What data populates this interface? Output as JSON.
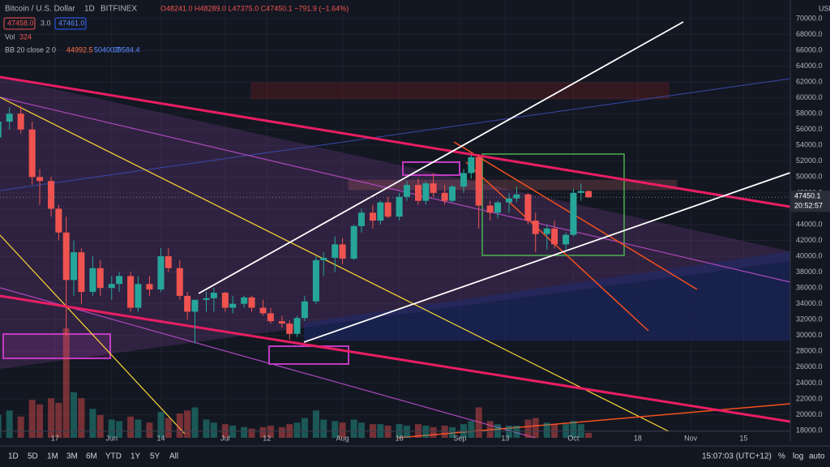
{
  "chart_data": {
    "type": "candlestick",
    "legend": {
      "symbol": "Bitcoin / U.S. Dollar",
      "interval": "1D",
      "exchange": "BITFINEX",
      "ohlc": "O48241.0 H48289.0 L47375.0 C47450.1 −791.9 (−1.64%)",
      "bid": "47458.0",
      "spread": "3.0",
      "ask": "47461.0",
      "vol_label": "Vol",
      "bb_label": "BB 20 close 2 0",
      "bb_basis": "44992.5",
      "bb_upper": "50400.7",
      "bb_lower": "39584.4"
    },
    "currency": "USD",
    "countdown": "20:52:57",
    "candles": {
      "x": [
        1,
        4,
        7,
        10,
        12,
        15,
        17,
        19,
        21,
        23,
        26,
        28,
        31,
        33,
        36,
        38,
        41,
        44,
        46,
        49,
        51,
        53,
        56,
        58,
        61,
        63,
        66,
        68,
        71,
        73,
        76,
        78,
        80,
        82,
        85,
        87,
        90,
        92,
        95,
        97,
        100,
        102,
        104,
        107,
        109,
        112,
        114,
        116,
        119,
        121,
        124,
        126,
        128,
        131,
        133,
        136,
        138,
        141,
        143,
        146,
        148,
        151,
        153,
        155,
        157
      ],
      "open": [
        55000,
        57000,
        58000,
        56000,
        50000,
        49500,
        46000,
        43000,
        37000,
        40500,
        35500,
        38500,
        36000,
        36500,
        37500,
        33500,
        36500,
        35800,
        40000,
        38500,
        35000,
        33000,
        34500,
        34700,
        35400,
        33500,
        34000,
        34800,
        33500,
        32800,
        31800,
        31500,
        30200,
        32200,
        34300,
        39500,
        39800,
        41500,
        39700,
        43800,
        45500,
        44500,
        46800,
        45000,
        47500,
        49000,
        47000,
        49200,
        48000,
        47000,
        48800,
        50500,
        52500,
        46400,
        45500,
        46800,
        47300,
        47800,
        44500,
        42800,
        43500,
        41500,
        42700,
        48000,
        48241
      ],
      "high": [
        57500,
        58800,
        59000,
        57000,
        51000,
        50000,
        46500,
        45000,
        42000,
        41000,
        40000,
        39500,
        37500,
        38000,
        38000,
        37500,
        37500,
        41000,
        41000,
        39500,
        35500,
        34000,
        35500,
        36000,
        35500,
        35000,
        35000,
        35000,
        34500,
        33500,
        32500,
        31900,
        32500,
        35000,
        40000,
        40500,
        42500,
        42300,
        44000,
        46000,
        46500,
        47000,
        47500,
        48000,
        49500,
        49800,
        49500,
        50500,
        49000,
        49000,
        51000,
        52800,
        52900,
        47000,
        47000,
        48000,
        48800,
        48000,
        45500,
        44000,
        44500,
        43000,
        48500,
        49200,
        48289
      ],
      "low": [
        54000,
        56000,
        55500,
        49000,
        46500,
        45000,
        42000,
        30000,
        35000,
        34000,
        35000,
        35000,
        34500,
        35500,
        33000,
        33000,
        35000,
        35500,
        38000,
        34500,
        32000,
        29000,
        33000,
        33000,
        33000,
        32800,
        33500,
        33000,
        32500,
        31500,
        31000,
        29500,
        29800,
        31800,
        34000,
        37500,
        38000,
        39000,
        39500,
        43000,
        43500,
        44000,
        44800,
        44500,
        47000,
        46500,
        46500,
        47500,
        46500,
        46800,
        48000,
        49800,
        43500,
        44500,
        44800,
        45500,
        46800,
        44000,
        40500,
        40800,
        41000,
        40800,
        42500,
        47000,
        47375
      ],
      "close": [
        57000,
        58000,
        56000,
        50000,
        49500,
        46000,
        43000,
        37000,
        40500,
        35500,
        38500,
        36000,
        36500,
        37500,
        33500,
        36500,
        35800,
        40000,
        38500,
        35000,
        33000,
        34500,
        34700,
        35400,
        33500,
        34000,
        34800,
        33500,
        32800,
        31800,
        31500,
        30200,
        32200,
        34300,
        39500,
        39800,
        41500,
        39700,
        43800,
        45500,
        44500,
        46800,
        45000,
        47500,
        49000,
        47000,
        49200,
        48000,
        47000,
        48800,
        50500,
        52500,
        46400,
        45500,
        46800,
        47300,
        47800,
        44500,
        42800,
        43500,
        41500,
        42700,
        48000,
        48242,
        47450.1
      ],
      "volume": [
        1500,
        1800,
        1400,
        2500,
        2200,
        2600,
        2300,
        7200,
        3000,
        2600,
        1900,
        1500,
        1200,
        1100,
        1400,
        1200,
        1000,
        1700,
        1300,
        1600,
        1800,
        2000,
        1200,
        1000,
        900,
        800,
        700,
        600,
        700,
        800,
        700,
        900,
        1000,
        1300,
        1800,
        1200,
        1100,
        1000,
        1200,
        1000,
        900,
        900,
        800,
        900,
        800,
        900,
        800,
        700,
        800,
        700,
        900,
        1100,
        2000,
        1100,
        900,
        800,
        800,
        1200,
        1300,
        1000,
        900,
        900,
        1100,
        900,
        324
      ]
    },
    "up_color": "#26a69a",
    "down_color": "#ef5350",
    "xlim": [
      1.5,
      210.3
    ],
    "xticks": [
      {
        "value": 16,
        "label": "17"
      },
      {
        "value": 31,
        "label": "Jun"
      },
      {
        "value": 44,
        "label": "14"
      },
      {
        "value": 61,
        "label": "Jul"
      },
      {
        "value": 72,
        "label": "12"
      },
      {
        "value": 92,
        "label": "Aug"
      },
      {
        "value": 107,
        "label": "16"
      },
      {
        "value": 123,
        "label": "Sep"
      },
      {
        "value": 135,
        "label": "13"
      },
      {
        "value": 153,
        "label": "Oct"
      },
      {
        "value": 170,
        "label": "18"
      },
      {
        "value": 184,
        "label": "Nov"
      },
      {
        "value": 198,
        "label": "15"
      }
    ],
    "ylim": [
      17080,
      72350
    ],
    "yticks": [
      {
        "value": 18000,
        "label": "18000.0"
      },
      {
        "value": 20000,
        "label": "20000.0"
      },
      {
        "value": 22000,
        "label": "22000.0"
      },
      {
        "value": 24000,
        "label": "24000.0"
      },
      {
        "value": 26000,
        "label": "26000.0"
      },
      {
        "value": 28000,
        "label": "28000.0"
      },
      {
        "value": 30000,
        "label": "30000.0"
      },
      {
        "value": 32000,
        "label": "32000.0"
      },
      {
        "value": 34000,
        "label": "34000.0"
      },
      {
        "value": 36000,
        "label": "36000.0"
      },
      {
        "value": 38000,
        "label": "38000.0"
      },
      {
        "value": 40000,
        "label": "40000.0"
      },
      {
        "value": 42000,
        "label": "42000.0"
      },
      {
        "value": 44000,
        "label": "44000.0"
      },
      {
        "value": 46000,
        "label": "46000.0"
      },
      {
        "value": 48000,
        "label": "48000.0"
      },
      {
        "value": 50000,
        "label": "50000.0"
      },
      {
        "value": 52000,
        "label": "52000.0"
      },
      {
        "value": 54000,
        "label": "54000.0"
      },
      {
        "value": 56000,
        "label": "56000.0"
      },
      {
        "value": 58000,
        "label": "58000.0"
      },
      {
        "value": 60000,
        "label": "60000.0"
      },
      {
        "value": 62000,
        "label": "62000.0"
      },
      {
        "value": 64000,
        "label": "64000.0"
      },
      {
        "value": 66000,
        "label": "66000.0"
      },
      {
        "value": 68000,
        "label": "68000.0"
      },
      {
        "value": 70000,
        "label": "70000.0"
      }
    ],
    "volume_lim": [
      0,
      8000
    ],
    "grid": true
  },
  "toolbar": {
    "ranges": [
      "1D",
      "5D",
      "1M",
      "3M",
      "6M",
      "YTD",
      "1Y",
      "5Y",
      "All"
    ],
    "clock": "15:07:03 (UTC+12)",
    "percent": "%",
    "log": "log",
    "auto": "auto"
  }
}
